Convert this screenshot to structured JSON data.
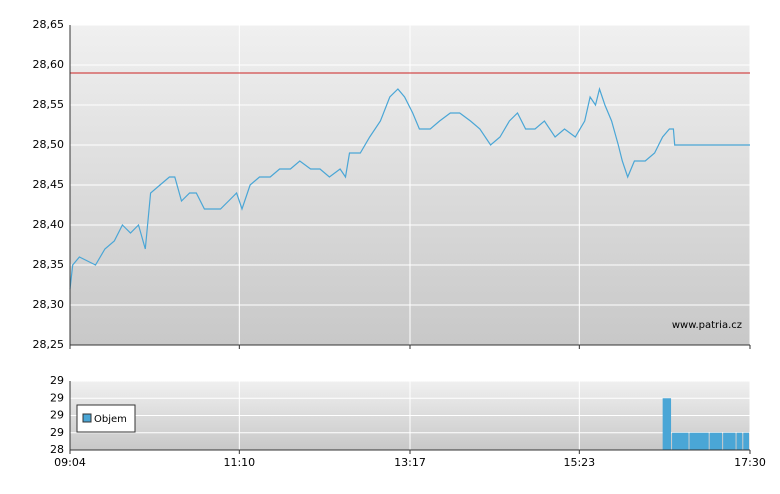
{
  "chart_data": [
    {
      "type": "line",
      "x": [
        "09:04",
        "09:06",
        "09:11",
        "09:23",
        "09:30",
        "09:37",
        "09:43",
        "09:49",
        "09:55",
        "10:00",
        "10:04",
        "10:11",
        "10:18",
        "10:22",
        "10:27",
        "10:33",
        "10:38",
        "10:44",
        "10:50",
        "10:56",
        "11:02",
        "11:08",
        "11:12",
        "11:18",
        "11:25",
        "11:33",
        "11:40",
        "11:48",
        "11:55",
        "12:03",
        "12:10",
        "12:17",
        "12:25",
        "12:29",
        "12:32",
        "12:40",
        "12:47",
        "12:55",
        "13:02",
        "13:08",
        "13:13",
        "13:19",
        "13:24",
        "13:32",
        "13:39",
        "13:47",
        "13:54",
        "14:02",
        "14:09",
        "14:17",
        "14:24",
        "14:31",
        "14:37",
        "14:43",
        "14:50",
        "14:57",
        "15:05",
        "15:12",
        "15:20",
        "15:27",
        "15:31",
        "15:35",
        "15:38",
        "15:42",
        "15:47",
        "15:52",
        "15:55",
        "15:59",
        "16:04",
        "16:12",
        "16:19",
        "16:25",
        "16:30",
        "16:33",
        "16:34",
        "17:30"
      ],
      "values": [
        28.32,
        28.35,
        28.36,
        28.35,
        28.37,
        28.38,
        28.4,
        28.39,
        28.4,
        28.37,
        28.44,
        28.45,
        28.46,
        28.46,
        28.43,
        28.44,
        28.44,
        28.42,
        28.42,
        28.42,
        28.43,
        28.44,
        28.42,
        28.45,
        28.46,
        28.46,
        28.47,
        28.47,
        28.48,
        28.47,
        28.47,
        28.46,
        28.47,
        28.46,
        28.49,
        28.49,
        28.51,
        28.53,
        28.56,
        28.57,
        28.56,
        28.54,
        28.52,
        28.52,
        28.53,
        28.54,
        28.54,
        28.53,
        28.52,
        28.5,
        28.51,
        28.53,
        28.54,
        28.52,
        28.52,
        28.53,
        28.51,
        28.52,
        28.51,
        28.53,
        28.56,
        28.55,
        28.57,
        28.55,
        28.53,
        28.5,
        28.48,
        28.46,
        28.48,
        28.48,
        28.49,
        28.51,
        28.52,
        28.52,
        28.5,
        28.5
      ],
      "color": "#4aa6d6",
      "xlim": [
        "09:04",
        "17:30"
      ],
      "ylim": [
        28.25,
        28.65
      ],
      "yticks": [
        {
          "value": 28.25,
          "label": "28,25"
        },
        {
          "value": 28.3,
          "label": "28,30"
        },
        {
          "value": 28.35,
          "label": "28,35"
        },
        {
          "value": 28.4,
          "label": "28,40"
        },
        {
          "value": 28.45,
          "label": "28,45"
        },
        {
          "value": 28.5,
          "label": "28,50"
        },
        {
          "value": 28.55,
          "label": "28,55"
        },
        {
          "value": 28.6,
          "label": "28,60"
        },
        {
          "value": 28.65,
          "label": "28,65"
        }
      ],
      "reference_line": {
        "value": 28.59,
        "color": "#cc2222"
      },
      "watermark": "www.patria.cz",
      "grid": true
    },
    {
      "type": "bar",
      "x": [
        "16:25",
        "16:32",
        "16:45",
        "17:00",
        "17:10",
        "17:20",
        "17:25"
      ],
      "series": [
        {
          "name": "Objem",
          "color": "#4aa6d6",
          "values": [
            29.0,
            28.6,
            28.6,
            28.6,
            28.6,
            28.6,
            28.6
          ]
        }
      ],
      "xlim": [
        "09:04",
        "17:30"
      ],
      "xticks": [
        "09:04",
        "11:10",
        "13:17",
        "15:23",
        "17:30"
      ],
      "ylim": [
        28.4,
        29.2
      ],
      "yticks": [
        {
          "value": 28.4,
          "label": "28"
        },
        {
          "value": 28.6,
          "label": "29"
        },
        {
          "value": 28.8,
          "label": "29"
        },
        {
          "value": 29.0,
          "label": "29"
        },
        {
          "value": 29.2,
          "label": "29"
        }
      ],
      "grid": true
    }
  ]
}
